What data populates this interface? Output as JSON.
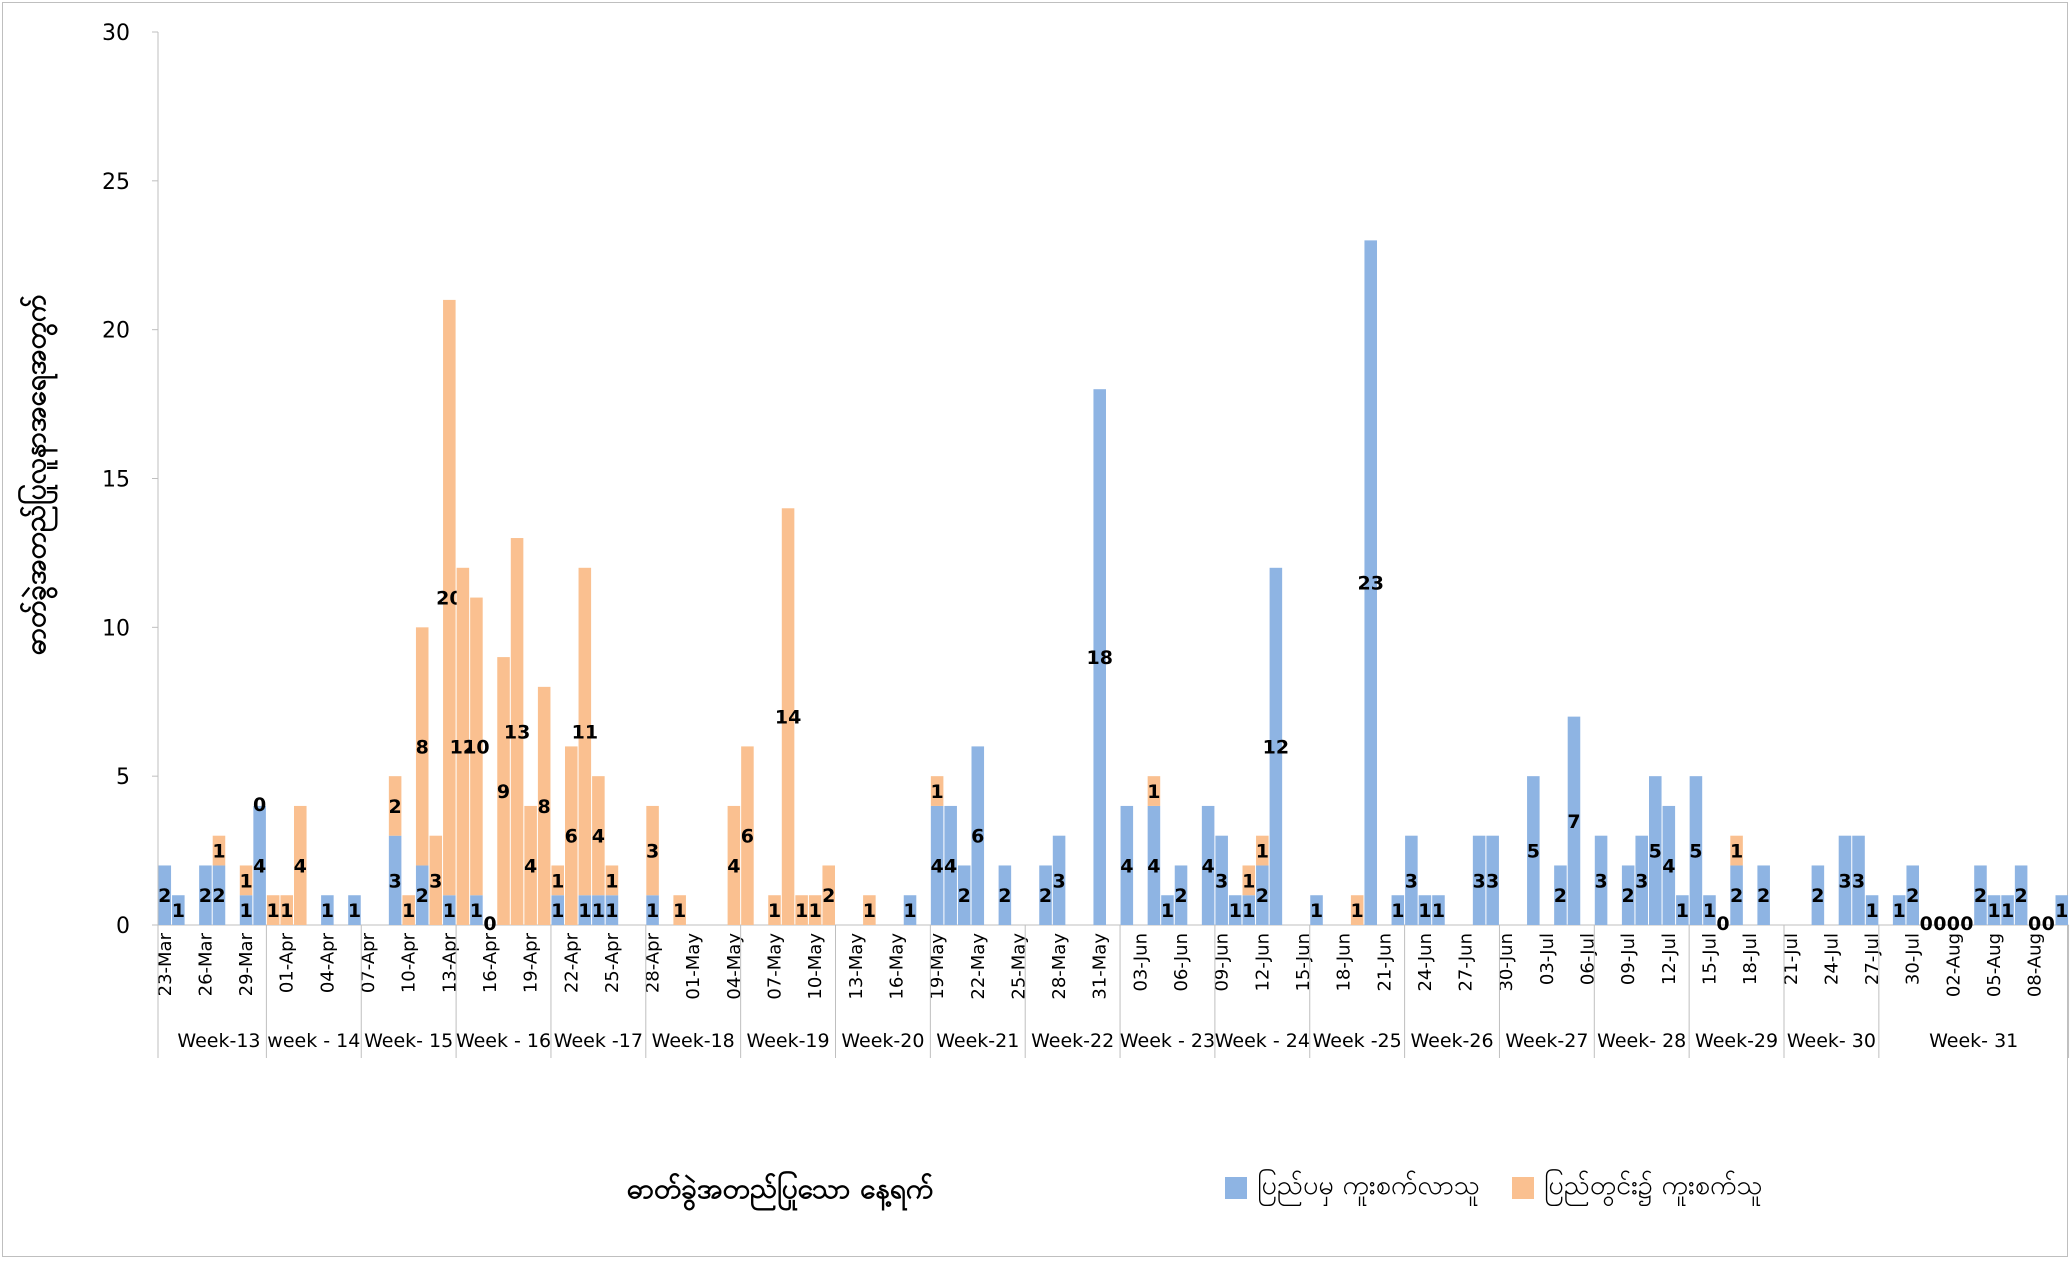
{
  "chart_data": {
    "type": "bar",
    "stacked": true,
    "ylabel": "ဓာတ်ခွဲအတည်ပြုလူနာအရေအတွက်",
    "xlabel": "ဓာတ်ခွဲအတည်ပြုသော နေ့ရက်",
    "ylim": [
      0,
      30
    ],
    "yticks": [
      0,
      5,
      10,
      15,
      20,
      25,
      30
    ],
    "grid": false,
    "legend_position": "bottom-right",
    "series": [
      {
        "name": "ပြည်ပမှ ကူးစက်လာသူ",
        "color": "#8eb4e3"
      },
      {
        "name": "ပြည်တွင်း၌ ကူးစက်သူ",
        "color": "#fac090"
      }
    ],
    "date_labels": [
      "23-Mar",
      "26-Mar",
      "29-Mar",
      "01-Apr",
      "04-Apr",
      "07-Apr",
      "10-Apr",
      "13-Apr",
      "16-Apr",
      "19-Apr",
      "22-Apr",
      "25-Apr",
      "28-Apr",
      "01-May",
      "04-May",
      "07-May",
      "10-May",
      "13-May",
      "16-May",
      "19-May",
      "22-May",
      "25-May",
      "28-May",
      "31-May",
      "03-Jun",
      "06-Jun",
      "09-Jun",
      "12-Jun",
      "15-Jun",
      "18-Jun",
      "21-Jun",
      "24-Jun",
      "27-Jun",
      "30-Jun",
      "03-Jul",
      "06-Jul",
      "09-Jul",
      "12-Jul",
      "15-Jul",
      "18-Jul",
      "21-Jul",
      "24-Jul",
      "27-Jul",
      "30-Jul",
      "02-Aug",
      "05-Aug",
      "08-Aug"
    ],
    "weeks": [
      {
        "label": "Week-13",
        "start_day": 1,
        "end_day": 7
      },
      {
        "label": "week - 14",
        "start_day": 8,
        "end_day": 14
      },
      {
        "label": "Week- 15",
        "start_day": 15,
        "end_day": 21
      },
      {
        "label": "Week - 16",
        "start_day": 22,
        "end_day": 28
      },
      {
        "label": "Week -17",
        "start_day": 29,
        "end_day": 35
      },
      {
        "label": "Week-18",
        "start_day": 36,
        "end_day": 42
      },
      {
        "label": "Week-19",
        "start_day": 43,
        "end_day": 49
      },
      {
        "label": "Week-20",
        "start_day": 50,
        "end_day": 56
      },
      {
        "label": "Week-21",
        "start_day": 57,
        "end_day": 63
      },
      {
        "label": "Week-22",
        "start_day": 64,
        "end_day": 70
      },
      {
        "label": "Week - 23",
        "start_day": 71,
        "end_day": 77
      },
      {
        "label": "Week - 24",
        "start_day": 78,
        "end_day": 84
      },
      {
        "label": "Week -25",
        "start_day": 85,
        "end_day": 91
      },
      {
        "label": "Week-26",
        "start_day": 92,
        "end_day": 98
      },
      {
        "label": "Week-27",
        "start_day": 99,
        "end_day": 105
      },
      {
        "label": "Week- 28",
        "start_day": 106,
        "end_day": 112
      },
      {
        "label": "Week-29",
        "start_day": 113,
        "end_day": 119
      },
      {
        "label": "Week- 30",
        "start_day": 120,
        "end_day": 126
      },
      {
        "label": "Week- 31",
        "start_day": 127,
        "end_day": 140
      }
    ],
    "bars": [
      {
        "day": 0,
        "imported": 2,
        "label_imported": "2"
      },
      {
        "day": 1,
        "imported": 1,
        "label_imported": "1"
      },
      {
        "day": 3,
        "imported": 2,
        "label_imported": "2"
      },
      {
        "day": 4,
        "imported": 2,
        "local": 1,
        "label_imported": "2",
        "label_local": "1"
      },
      {
        "day": 6,
        "imported": 1,
        "local": 1,
        "label_imported": "1",
        "label_local": "1"
      },
      {
        "day": 7,
        "imported": 4,
        "local": 0,
        "label_imported": "4",
        "label_local": "0"
      },
      {
        "day": 8,
        "local": 1,
        "label_local": "1"
      },
      {
        "day": 9,
        "local": 1,
        "label_local": "1"
      },
      {
        "day": 10,
        "local": 4,
        "label_local": "4"
      },
      {
        "day": 12,
        "imported": 1,
        "label_imported": "1"
      },
      {
        "day": 14,
        "imported": 1,
        "label_imported": "1"
      },
      {
        "day": 17,
        "imported": 3,
        "local": 2,
        "label_imported": "3",
        "label_local": "2"
      },
      {
        "day": 18,
        "local": 1,
        "label_local": "1"
      },
      {
        "day": 19,
        "imported": 2,
        "local": 8,
        "label_imported": "2",
        "label_local": "8"
      },
      {
        "day": 20,
        "local": 3,
        "label_local": "3"
      },
      {
        "day": 21,
        "imported": 1,
        "local": 20,
        "label_imported": "1",
        "label_local": "20"
      },
      {
        "day": 22,
        "local": 12,
        "label_local": "12"
      },
      {
        "day": 23,
        "imported": 1,
        "local": 10,
        "label_imported": "1",
        "label_local": "10"
      },
      {
        "day": 24,
        "local": 0,
        "label_local": "0"
      },
      {
        "day": 25,
        "local": 9,
        "label_local": "9"
      },
      {
        "day": 26,
        "local": 13,
        "label_local": "13"
      },
      {
        "day": 27,
        "local": 4,
        "label_local": "4"
      },
      {
        "day": 28,
        "local": 8,
        "label_local": "8"
      },
      {
        "day": 29,
        "imported": 1,
        "local": 1,
        "label_imported": "1",
        "label_local": "1"
      },
      {
        "day": 30,
        "local": 6,
        "label_local": "6"
      },
      {
        "day": 31,
        "imported": 1,
        "local": 11,
        "label_imported": "1",
        "label_local": "11"
      },
      {
        "day": 32,
        "imported": 1,
        "local": 4,
        "label_imported": "1",
        "label_local": "4"
      },
      {
        "day": 33,
        "imported": 1,
        "local": 1,
        "label_imported": "1",
        "label_local": "1"
      },
      {
        "day": 36,
        "imported": 1,
        "local": 3,
        "label_imported": "1",
        "label_local": "3"
      },
      {
        "day": 38,
        "local": 1,
        "label_local": "1"
      },
      {
        "day": 42,
        "local": 4,
        "label_local": "4"
      },
      {
        "day": 43,
        "local": 6,
        "label_local": "6"
      },
      {
        "day": 45,
        "local": 1,
        "label_local": "1"
      },
      {
        "day": 46,
        "local": 14,
        "label_local": "14"
      },
      {
        "day": 47,
        "local": 1,
        "label_local": "1"
      },
      {
        "day": 48,
        "local": 1,
        "label_local": "1"
      },
      {
        "day": 49,
        "local": 2,
        "label_local": "2"
      },
      {
        "day": 52,
        "local": 1,
        "label_local": "1"
      },
      {
        "day": 55,
        "imported": 1,
        "label_imported": "1"
      },
      {
        "day": 57,
        "imported": 4,
        "local": 1,
        "label_imported": "4",
        "label_local": "1"
      },
      {
        "day": 58,
        "imported": 4,
        "label_imported": "4"
      },
      {
        "day": 59,
        "imported": 2,
        "label_imported": "2"
      },
      {
        "day": 60,
        "imported": 6,
        "label_imported": "6"
      },
      {
        "day": 62,
        "imported": 2,
        "label_imported": "2"
      },
      {
        "day": 65,
        "imported": 2,
        "label_imported": "2"
      },
      {
        "day": 66,
        "imported": 3,
        "label_imported": "3"
      },
      {
        "day": 69,
        "imported": 18,
        "label_imported": "18"
      },
      {
        "day": 71,
        "imported": 4,
        "label_imported": "4"
      },
      {
        "day": 73,
        "imported": 4,
        "local": 1,
        "label_imported": "4",
        "label_local": "1"
      },
      {
        "day": 74,
        "imported": 1,
        "label_imported": "1"
      },
      {
        "day": 75,
        "imported": 2,
        "label_imported": "2"
      },
      {
        "day": 77,
        "imported": 4,
        "label_imported": "4"
      },
      {
        "day": 78,
        "imported": 3,
        "label_imported": "3"
      },
      {
        "day": 79,
        "imported": 1,
        "label_imported": "1"
      },
      {
        "day": 80,
        "imported": 1,
        "local": 1,
        "label_imported": "1",
        "label_local": "1"
      },
      {
        "day": 81,
        "imported": 2,
        "local": 1,
        "label_imported": "2",
        "label_local": "1"
      },
      {
        "day": 82,
        "imported": 12,
        "label_imported": "12"
      },
      {
        "day": 85,
        "imported": 1,
        "label_imported": "1"
      },
      {
        "day": 88,
        "local": 1,
        "label_local": "1"
      },
      {
        "day": 89,
        "imported": 23,
        "label_imported": "23"
      },
      {
        "day": 91,
        "imported": 1,
        "label_imported": "1"
      },
      {
        "day": 92,
        "imported": 3,
        "label_imported": "3"
      },
      {
        "day": 93,
        "imported": 1,
        "label_imported": "1"
      },
      {
        "day": 94,
        "imported": 1,
        "label_imported": "1"
      },
      {
        "day": 97,
        "imported": 3,
        "label_imported": "3"
      },
      {
        "day": 98,
        "imported": 3,
        "label_imported": "3"
      },
      {
        "day": 101,
        "imported": 5,
        "label_imported": "5"
      },
      {
        "day": 103,
        "imported": 2,
        "label_imported": "2"
      },
      {
        "day": 104,
        "imported": 7,
        "label_imported": "7"
      },
      {
        "day": 106,
        "imported": 3,
        "label_imported": "3"
      },
      {
        "day": 108,
        "imported": 2,
        "label_imported": "2"
      },
      {
        "day": 109,
        "imported": 3,
        "label_imported": "3"
      },
      {
        "day": 110,
        "imported": 5,
        "label_imported": "5"
      },
      {
        "day": 111,
        "imported": 4,
        "label_imported": "4"
      },
      {
        "day": 112,
        "imported": 1,
        "label_imported": "1"
      },
      {
        "day": 113,
        "imported": 5,
        "label_imported": "5"
      },
      {
        "day": 114,
        "imported": 1,
        "label_imported": "1"
      },
      {
        "day": 115,
        "local": 0,
        "label_local": "0"
      },
      {
        "day": 116,
        "imported": 2,
        "local": 1,
        "label_imported": "2",
        "label_local": "1"
      },
      {
        "day": 118,
        "imported": 2,
        "label_imported": "2"
      },
      {
        "day": 122,
        "imported": 2,
        "label_imported": "2"
      },
      {
        "day": 124,
        "imported": 3,
        "label_imported": "3"
      },
      {
        "day": 125,
        "imported": 3,
        "label_imported": "3"
      },
      {
        "day": 126,
        "imported": 1,
        "label_imported": "1"
      },
      {
        "day": 128,
        "imported": 1,
        "label_imported": "1"
      },
      {
        "day": 129,
        "imported": 2,
        "label_imported": "2"
      },
      {
        "day": 130,
        "local": 0,
        "label_local": "0"
      },
      {
        "day": 131,
        "local": 0,
        "label_local": "0"
      },
      {
        "day": 132,
        "local": 0,
        "label_local": "0"
      },
      {
        "day": 133,
        "local": 0,
        "label_local": "0"
      },
      {
        "day": 134,
        "imported": 2,
        "label_imported": "2"
      },
      {
        "day": 135,
        "imported": 1,
        "label_imported": "1"
      },
      {
        "day": 136,
        "imported": 1,
        "label_imported": "1"
      },
      {
        "day": 137,
        "imported": 2,
        "label_imported": "2"
      },
      {
        "day": 138,
        "local": 0,
        "label_local": "0"
      },
      {
        "day": 139,
        "local": 0,
        "label_local": "0"
      },
      {
        "day": 140,
        "imported": 1,
        "label_imported": "1"
      }
    ]
  }
}
